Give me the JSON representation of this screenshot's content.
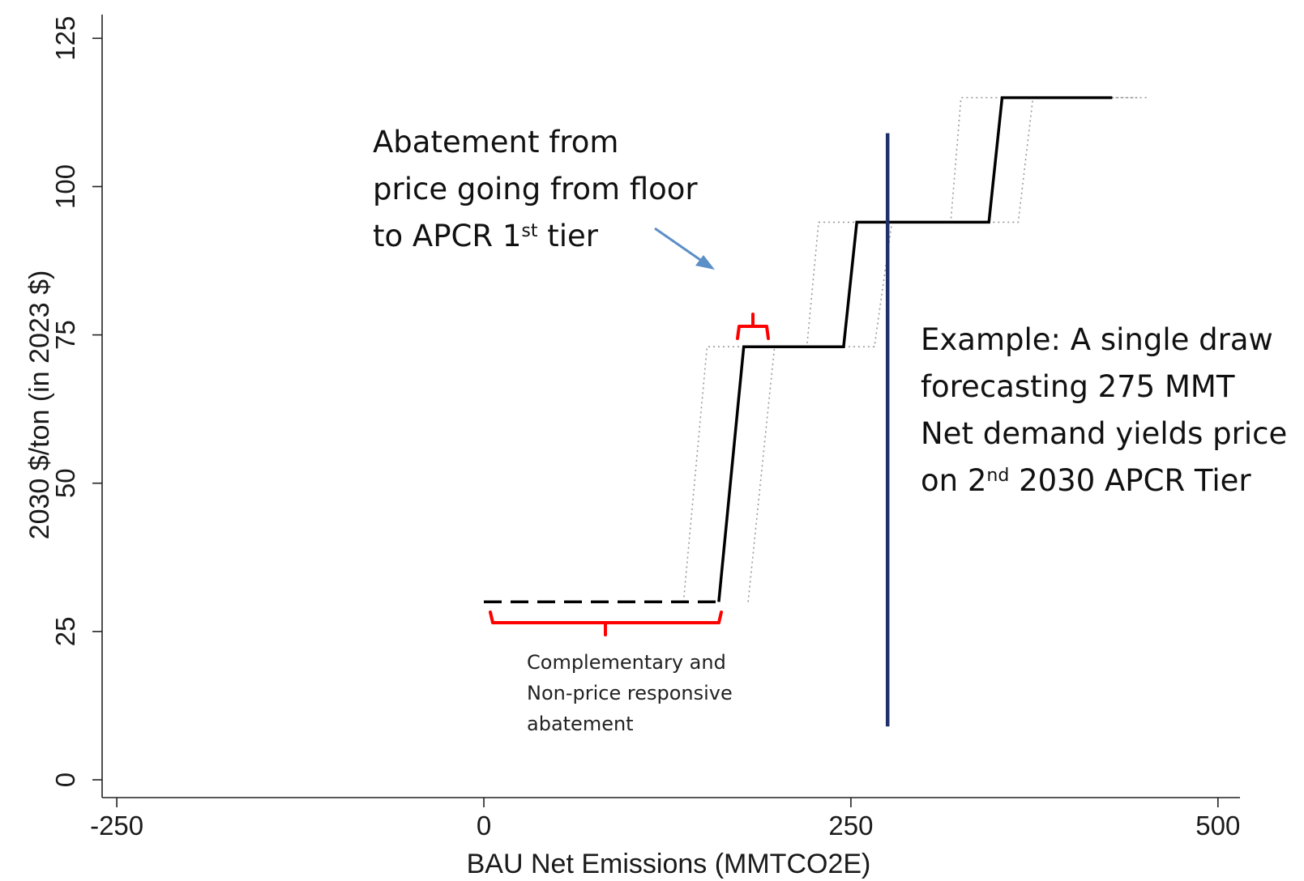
{
  "chart_data": {
    "type": "line",
    "xlabel": "BAU Net Emissions (MMTCO2E)",
    "ylabel": "2030 $/ton (in 2023 $)",
    "xlim": [
      -260,
      515
    ],
    "ylim": [
      -3,
      129
    ],
    "xticks": [
      -250,
      0,
      250,
      500
    ],
    "xtick_labels": [
      "-250",
      "0",
      "250",
      "500"
    ],
    "yticks": [
      0,
      25,
      50,
      75,
      100,
      125
    ],
    "ytick_labels": [
      "0",
      "25",
      "50",
      "75",
      "100",
      "125"
    ],
    "grid": false,
    "series": [
      {
        "style": "solid",
        "color": "#000000",
        "x": [
          160,
          177,
          245,
          254,
          344,
          353,
          428
        ],
        "y": [
          30,
          73,
          73,
          94,
          94,
          115,
          115
        ]
      },
      {
        "style": "dashed",
        "color": "#000000",
        "x": [
          0,
          160
        ],
        "y": [
          30,
          30
        ]
      },
      {
        "style": "dotted",
        "color": "#999999",
        "x": [
          136,
          152,
          220,
          228,
          318,
          325,
          445
        ],
        "y": [
          30,
          73,
          73,
          94,
          94,
          115,
          115
        ]
      },
      {
        "style": "dotted",
        "color": "#999999",
        "x": [
          180,
          198,
          266,
          278,
          364,
          374,
          452
        ],
        "y": [
          30,
          73,
          73,
          94,
          94,
          115,
          115
        ]
      }
    ],
    "vline": {
      "x": 275,
      "y": [
        9,
        109
      ],
      "color": "#1f2f6b"
    },
    "annotations": {
      "abatement_lines": [
        "Abatement from",
        "price  going from floor",
        "to APCR 1st tier"
      ],
      "example_lines": [
        "Example: A single draw",
        "forecasting 275 MMT",
        "Net demand yields price",
        "on 2nd 2030 APCR Tier"
      ],
      "complementary_lines": [
        "Complementary and",
        "Non-price responsive",
        "abatement"
      ]
    },
    "colors": {
      "brace": "#ff0000",
      "arrow": "#5b8fc7"
    }
  }
}
